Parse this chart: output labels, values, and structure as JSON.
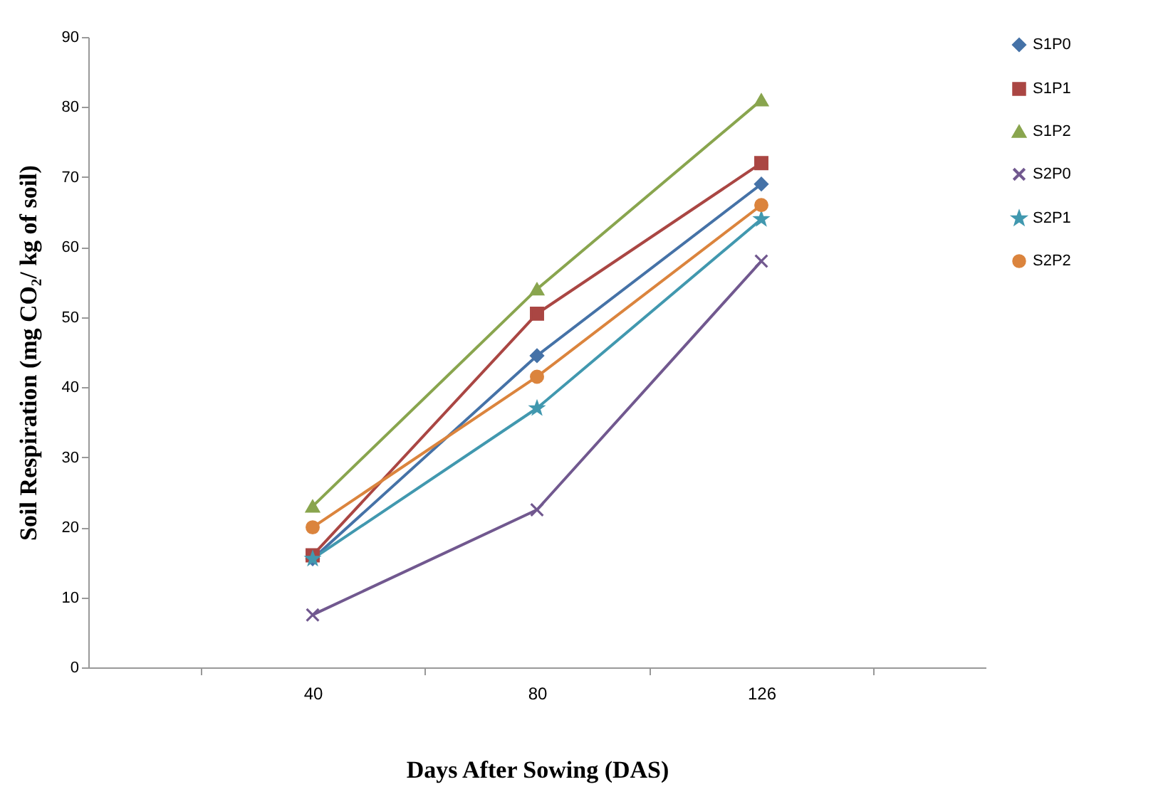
{
  "chart_data": {
    "type": "line",
    "xlabel": "Days After Sowing (DAS)",
    "ylabel": "Soil Respiration (mg CO₂/ kg of soil)",
    "categories": [
      "40",
      "80",
      "126"
    ],
    "ylim": [
      0,
      90
    ],
    "yticks": [
      0,
      10,
      20,
      30,
      40,
      50,
      60,
      70,
      80,
      90
    ],
    "grid": false,
    "legend": "right",
    "line_style": "solid",
    "series": [
      {
        "name": "S1P0",
        "color": "#4572a7",
        "marker": "diamond",
        "values": [
          15.5,
          44.5,
          69
        ]
      },
      {
        "name": "S1P1",
        "color": "#aa4643",
        "marker": "square",
        "values": [
          16,
          50.5,
          72
        ]
      },
      {
        "name": "S1P2",
        "color": "#89a54e",
        "marker": "triangle",
        "values": [
          23,
          54,
          81
        ]
      },
      {
        "name": "S2P0",
        "color": "#71588f",
        "marker": "cross",
        "values": [
          7.5,
          22.5,
          58
        ]
      },
      {
        "name": "S2P1",
        "color": "#4198af",
        "marker": "star",
        "values": [
          15.5,
          37,
          64
        ]
      },
      {
        "name": "S2P2",
        "color": "#db843d",
        "marker": "circle",
        "values": [
          20,
          41.5,
          66
        ]
      }
    ]
  }
}
